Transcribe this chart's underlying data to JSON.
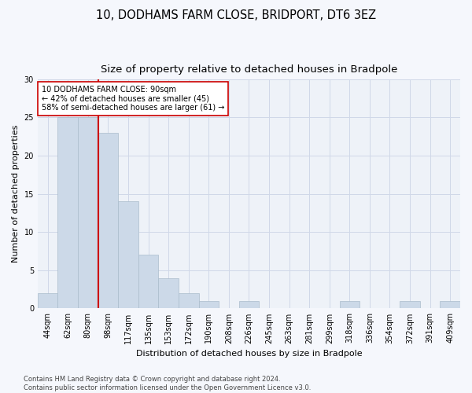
{
  "title1": "10, DODHAMS FARM CLOSE, BRIDPORT, DT6 3EZ",
  "title2": "Size of property relative to detached houses in Bradpole",
  "xlabel": "Distribution of detached houses by size in Bradpole",
  "ylabel": "Number of detached properties",
  "bar_labels": [
    "44sqm",
    "62sqm",
    "80sqm",
    "98sqm",
    "117sqm",
    "135sqm",
    "153sqm",
    "172sqm",
    "190sqm",
    "208sqm",
    "226sqm",
    "245sqm",
    "263sqm",
    "281sqm",
    "299sqm",
    "318sqm",
    "336sqm",
    "354sqm",
    "372sqm",
    "391sqm",
    "409sqm"
  ],
  "bar_values": [
    2,
    25,
    25,
    23,
    14,
    7,
    4,
    2,
    1,
    0,
    1,
    0,
    0,
    0,
    0,
    1,
    0,
    0,
    1,
    0,
    1
  ],
  "bar_color": "#ccd9e8",
  "bar_edgecolor": "#aabccc",
  "vline_x_index": 2,
  "vline_color": "#cc0000",
  "annotation_line1": "10 DODHAMS FARM CLOSE: 90sqm",
  "annotation_line2": "← 42% of detached houses are smaller (45)",
  "annotation_line3": "58% of semi-detached houses are larger (61) →",
  "annotation_box_color": "#ffffff",
  "annotation_box_edgecolor": "#cc0000",
  "ylim": [
    0,
    30
  ],
  "yticks": [
    0,
    5,
    10,
    15,
    20,
    25,
    30
  ],
  "grid_color": "#d0d8e8",
  "plot_bg_color": "#eef2f8",
  "fig_bg_color": "#f5f7fc",
  "footer": "Contains HM Land Registry data © Crown copyright and database right 2024.\nContains public sector information licensed under the Open Government Licence v3.0.",
  "title1_fontsize": 10.5,
  "title2_fontsize": 9.5,
  "xlabel_fontsize": 8,
  "ylabel_fontsize": 8,
  "tick_fontsize": 7,
  "annotation_fontsize": 7,
  "footer_fontsize": 6
}
